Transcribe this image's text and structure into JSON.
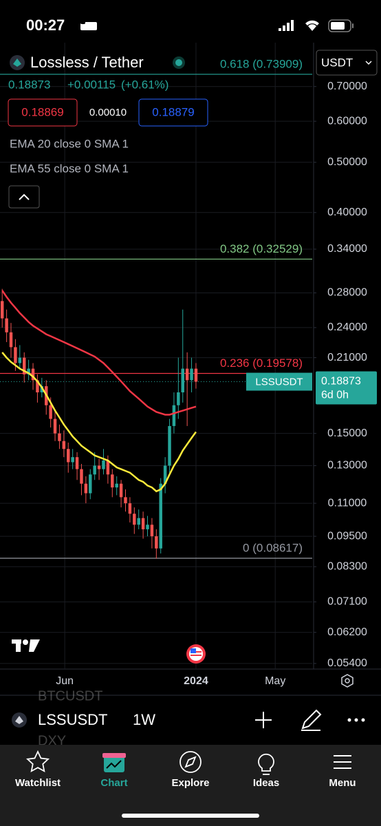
{
  "status_bar": {
    "time": "00:27"
  },
  "header": {
    "symbol_title": "Lossless / Tether",
    "currency": "USDT"
  },
  "quote": {
    "price": "0.18873",
    "change": "+0.00115",
    "change_pct": "(+0.61%)",
    "bid": "0.18869",
    "spread": "0.00010",
    "ask": "0.18879"
  },
  "indicators": [
    "EMA 20 close 0 SMA 1",
    "EMA 55 close 0 SMA 1"
  ],
  "chart_data": {
    "type": "candlestick",
    "log_scale": true,
    "grid": true,
    "ylim": [
      0.053,
      0.83
    ],
    "yticks": [
      {
        "value": 0.7,
        "label": "0.70000"
      },
      {
        "value": 0.6,
        "label": "0.60000"
      },
      {
        "value": 0.5,
        "label": "0.50000"
      },
      {
        "value": 0.4,
        "label": "0.40000"
      },
      {
        "value": 0.34,
        "label": "0.34000"
      },
      {
        "value": 0.28,
        "label": "0.28000"
      },
      {
        "value": 0.24,
        "label": "0.24000"
      },
      {
        "value": 0.21,
        "label": "0.21000"
      },
      {
        "value": 0.15,
        "label": "0.15000"
      },
      {
        "value": 0.13,
        "label": "0.13000"
      },
      {
        "value": 0.11,
        "label": "0.11000"
      },
      {
        "value": 0.095,
        "label": "0.09500"
      },
      {
        "value": 0.083,
        "label": "0.08300"
      },
      {
        "value": 0.071,
        "label": "0.07100"
      },
      {
        "value": 0.062,
        "label": "0.06200"
      },
      {
        "value": 0.054,
        "label": "0.05400"
      }
    ],
    "xlim": [
      -0.5,
      70.4
    ],
    "xticks": [
      {
        "value": 14.2,
        "label": "Jun"
      },
      {
        "value": 44,
        "label": "2024"
      },
      {
        "value": 62,
        "label": "May"
      }
    ],
    "up_color": "#26a69a",
    "down_color": "#ef5350",
    "candles": [
      [
        0.27,
        0.285,
        0.24,
        0.25
      ],
      [
        0.25,
        0.26,
        0.225,
        0.235
      ],
      [
        0.235,
        0.245,
        0.21,
        0.22
      ],
      [
        0.22,
        0.228,
        0.198,
        0.205
      ],
      [
        0.205,
        0.222,
        0.2,
        0.21
      ],
      [
        0.21,
        0.215,
        0.188,
        0.195
      ],
      [
        0.195,
        0.208,
        0.19,
        0.2
      ],
      [
        0.2,
        0.205,
        0.182,
        0.19
      ],
      [
        0.19,
        0.195,
        0.172,
        0.18
      ],
      [
        0.18,
        0.192,
        0.176,
        0.185
      ],
      [
        0.185,
        0.19,
        0.163,
        0.17
      ],
      [
        0.17,
        0.176,
        0.154,
        0.16
      ],
      [
        0.16,
        0.166,
        0.145,
        0.15
      ],
      [
        0.15,
        0.156,
        0.14,
        0.145
      ],
      [
        0.145,
        0.152,
        0.135,
        0.14
      ],
      [
        0.14,
        0.144,
        0.126,
        0.132
      ],
      [
        0.132,
        0.14,
        0.128,
        0.135
      ],
      [
        0.135,
        0.138,
        0.122,
        0.128
      ],
      [
        0.128,
        0.131,
        0.114,
        0.12
      ],
      [
        0.12,
        0.124,
        0.11,
        0.115
      ],
      [
        0.115,
        0.128,
        0.112,
        0.125
      ],
      [
        0.125,
        0.138,
        0.122,
        0.13
      ],
      [
        0.13,
        0.134,
        0.122,
        0.128
      ],
      [
        0.128,
        0.14,
        0.125,
        0.133
      ],
      [
        0.133,
        0.136,
        0.12,
        0.125
      ],
      [
        0.125,
        0.128,
        0.113,
        0.118
      ],
      [
        0.118,
        0.124,
        0.114,
        0.12
      ],
      [
        0.12,
        0.122,
        0.108,
        0.113
      ],
      [
        0.113,
        0.117,
        0.106,
        0.11
      ],
      [
        0.11,
        0.113,
        0.101,
        0.105
      ],
      [
        0.105,
        0.108,
        0.096,
        0.1
      ],
      [
        0.1,
        0.107,
        0.098,
        0.103
      ],
      [
        0.103,
        0.106,
        0.094,
        0.098
      ],
      [
        0.098,
        0.104,
        0.095,
        0.1
      ],
      [
        0.1,
        0.103,
        0.09,
        0.095
      ],
      [
        0.095,
        0.098,
        0.086,
        0.09
      ],
      [
        0.09,
        0.123,
        0.088,
        0.12
      ],
      [
        0.12,
        0.135,
        0.115,
        0.13
      ],
      [
        0.13,
        0.16,
        0.126,
        0.155
      ],
      [
        0.155,
        0.18,
        0.15,
        0.17
      ],
      [
        0.17,
        0.21,
        0.16,
        0.18
      ],
      [
        0.18,
        0.26,
        0.172,
        0.2
      ],
      [
        0.2,
        0.215,
        0.155,
        0.19
      ],
      [
        0.19,
        0.21,
        0.18,
        0.2
      ],
      [
        0.2,
        0.205,
        0.183,
        0.18873
      ]
    ],
    "series": [
      {
        "color": "#ffeb3b",
        "values": [
          0.215,
          0.21,
          0.206,
          0.203,
          0.2,
          0.198,
          0.196,
          0.193,
          0.189,
          0.184,
          0.178,
          0.172,
          0.166,
          0.161,
          0.156,
          0.152,
          0.148,
          0.145,
          0.142,
          0.14,
          0.138,
          0.136,
          0.135,
          0.134,
          0.133,
          0.131,
          0.129,
          0.128,
          0.127,
          0.126,
          0.124,
          0.122,
          0.121,
          0.119,
          0.118,
          0.116,
          0.117,
          0.12,
          0.125,
          0.13,
          0.134,
          0.139,
          0.143,
          0.147,
          0.151
        ]
      },
      {
        "color": "#f23645",
        "values": [
          0.283,
          0.275,
          0.268,
          0.262,
          0.256,
          0.251,
          0.246,
          0.242,
          0.239,
          0.236,
          0.233,
          0.231,
          0.229,
          0.227,
          0.225,
          0.223,
          0.221,
          0.219,
          0.217,
          0.215,
          0.213,
          0.211,
          0.208,
          0.205,
          0.201,
          0.197,
          0.193,
          0.189,
          0.185,
          0.181,
          0.178,
          0.175,
          0.172,
          0.169,
          0.167,
          0.165,
          0.164,
          0.163,
          0.163,
          0.164,
          0.165,
          0.166,
          0.167,
          0.168,
          0.169
        ]
      }
    ],
    "levels": [
      {
        "value": 0.73909,
        "label": "0.618 (0.73909)",
        "color": "#26a69a"
      },
      {
        "value": 0.32529,
        "label": "0.382 (0.32529)",
        "color": "#81c784"
      },
      {
        "value": 0.19578,
        "label": "0.236 (0.19578)",
        "color": "#f23645"
      },
      {
        "value": 0.08617,
        "label": "0 (0.08617)",
        "color": "#9598a1"
      }
    ],
    "last": {
      "value": 0.18873,
      "label": "0.18873",
      "name": "LSSUSDT",
      "countdown": "6d 0h",
      "color": "#26a69a"
    }
  },
  "ghost_labels": [
    "BTCUSDT",
    "DXY"
  ],
  "toolbar": {
    "symbol": "LSSUSDT",
    "interval": "1W"
  },
  "nav": [
    "Watchlist",
    "Chart",
    "Explore",
    "Ideas",
    "Menu"
  ]
}
